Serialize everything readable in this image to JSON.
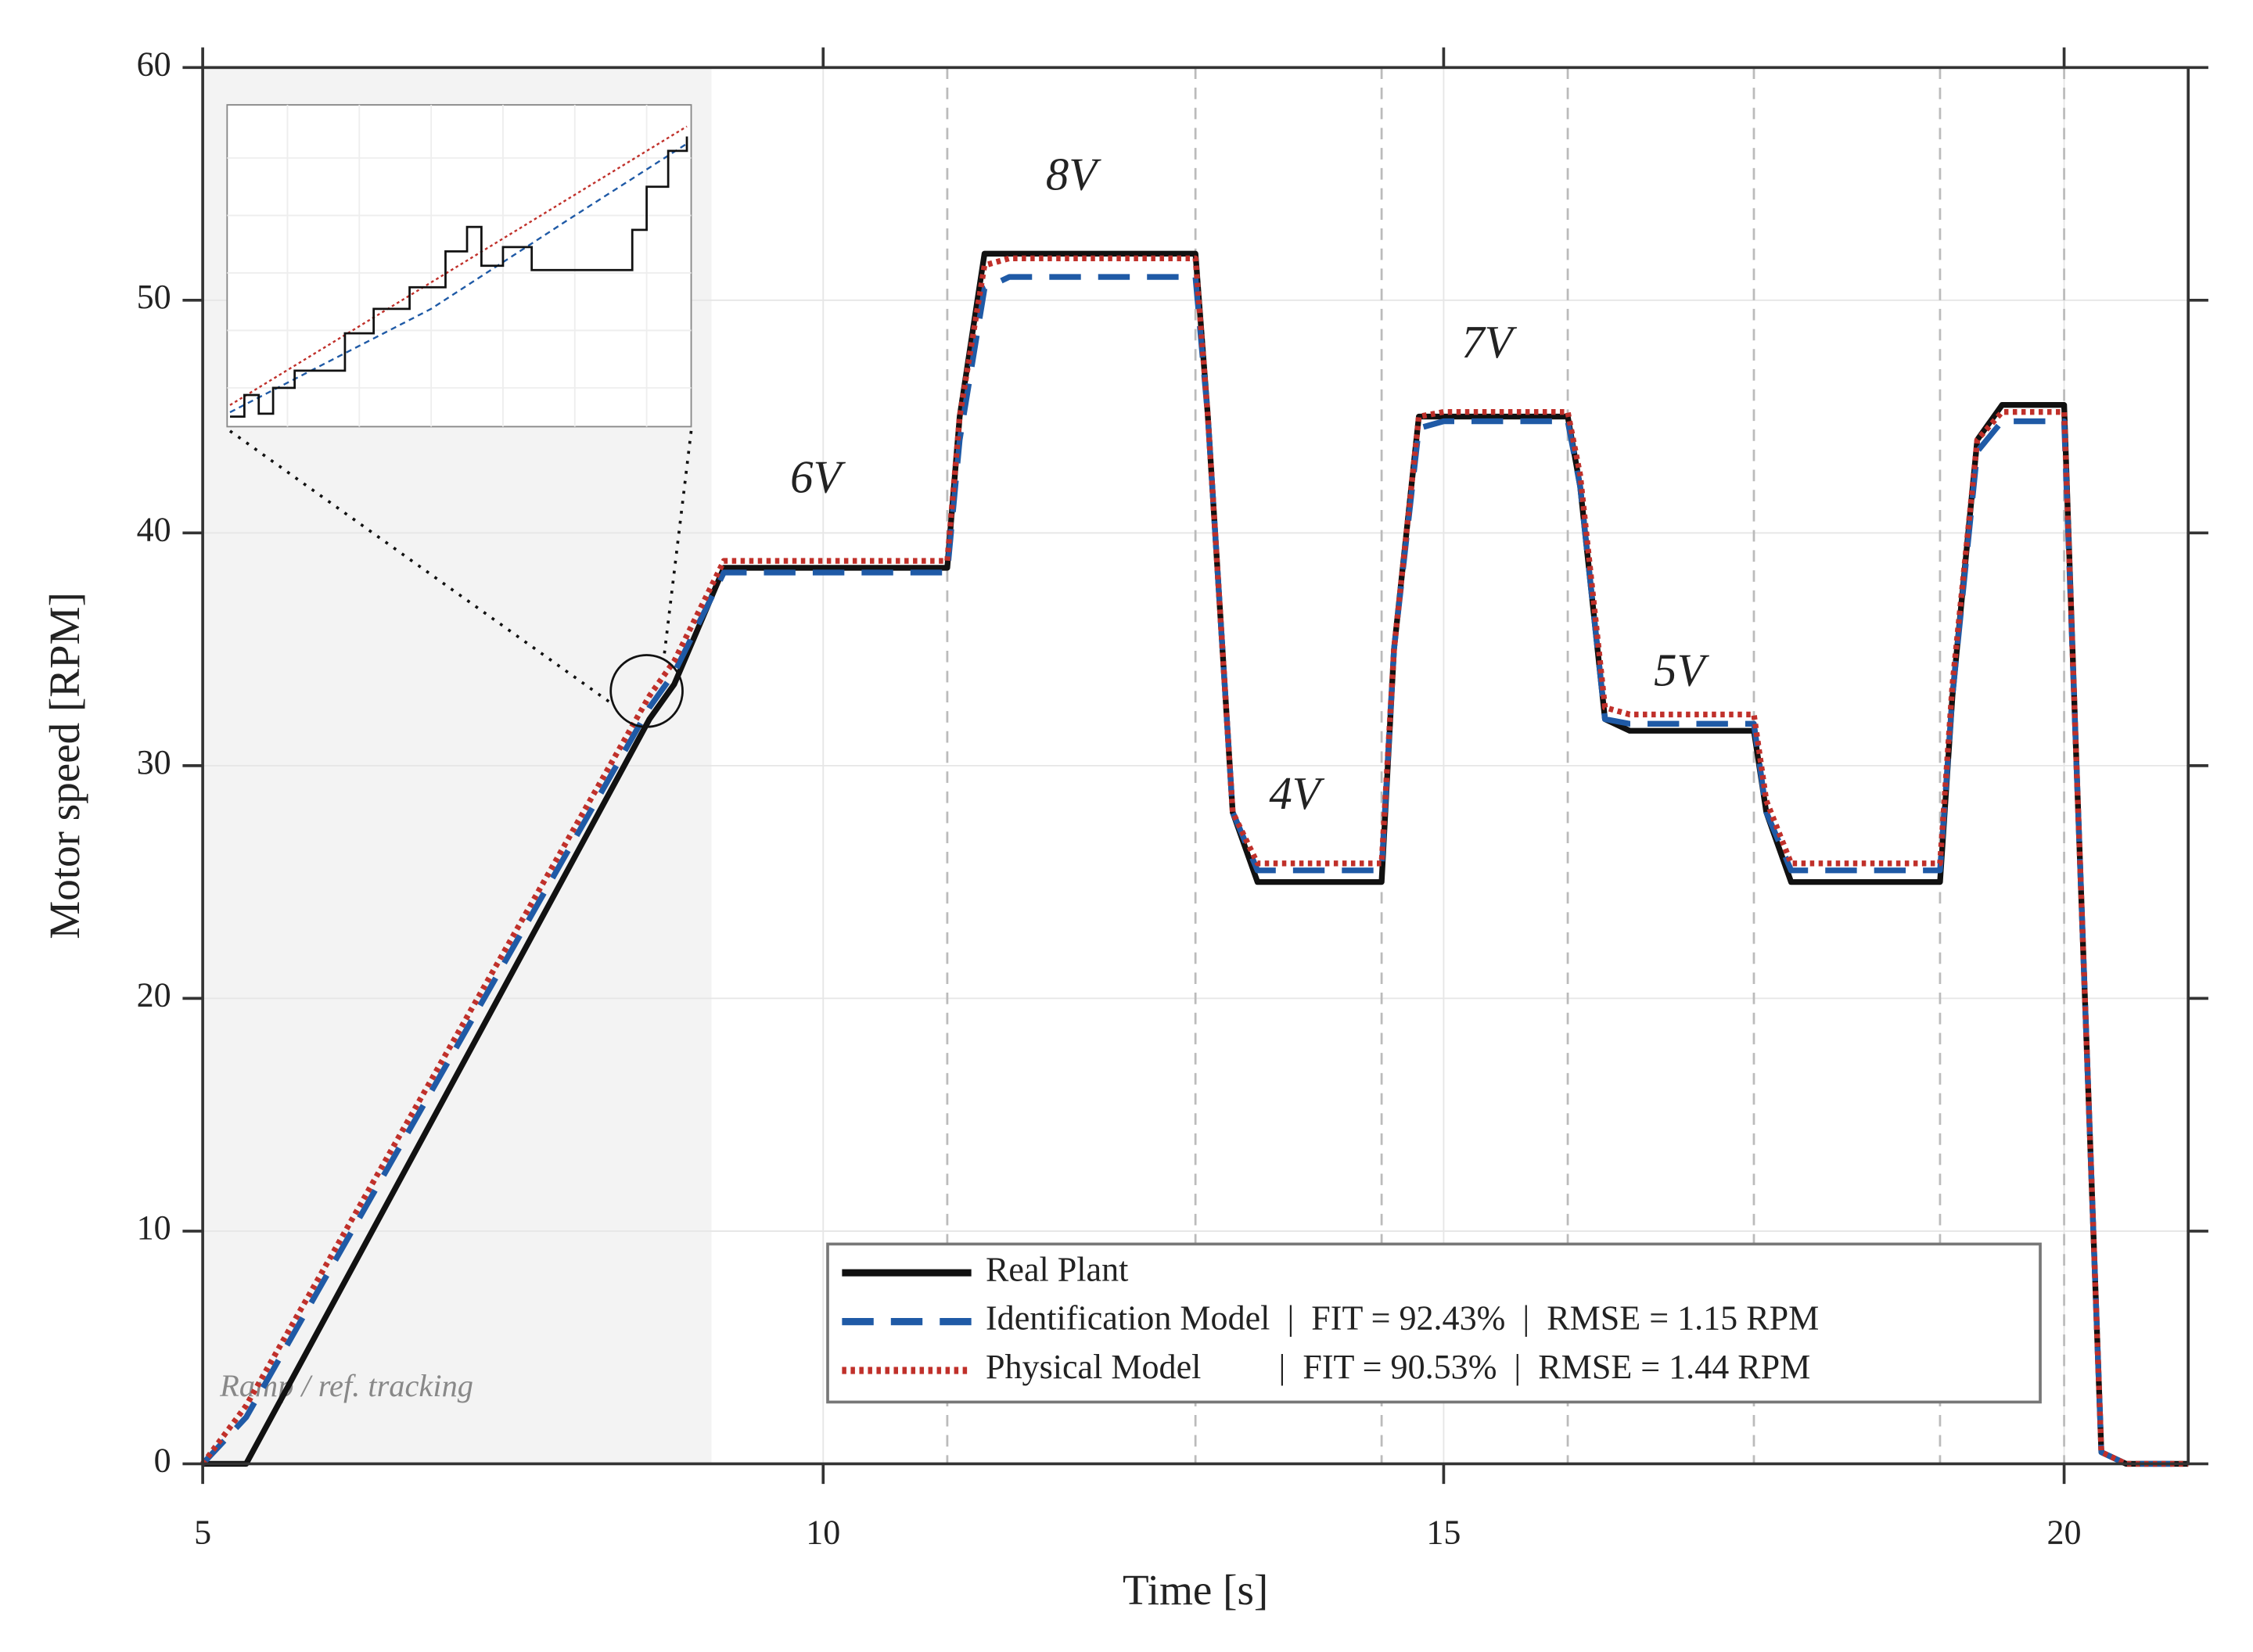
{
  "chart_data": {
    "type": "line",
    "xlabel": "Time  [s]",
    "ylabel": "Motor speed  [RPM]",
    "x": [
      5,
      5.35,
      8.6,
      8.8,
      9.2,
      11.0,
      11.1,
      11.3,
      11.5,
      13.0,
      13.1,
      13.3,
      13.5,
      14.5,
      14.6,
      14.8,
      15.0,
      16.0,
      16.1,
      16.3,
      16.5,
      17.5,
      17.6,
      17.8,
      19.0,
      19.1,
      19.3,
      19.5,
      20.0,
      20.1,
      20.3,
      20.5,
      21.0
    ],
    "series": [
      {
        "name": "Real Plant",
        "color": "#111111",
        "dash": "solid",
        "values": [
          0,
          0,
          32,
          33.5,
          38.5,
          38.5,
          45,
          52,
          52,
          52,
          45,
          28,
          25,
          25,
          35,
          45,
          45,
          45,
          42,
          32,
          31.5,
          31.5,
          28,
          25,
          25,
          33,
          44,
          45.5,
          45.5,
          30,
          0.5,
          0,
          0
        ]
      },
      {
        "name": "Identification Model  |  FIT = 92.43%  |  RMSE = 1.15 RPM",
        "color": "#1f5aa6",
        "dash": "dashed",
        "values": [
          0,
          2,
          32.5,
          34,
          38.3,
          38.3,
          44,
          50.5,
          51,
          51,
          45,
          28,
          25.5,
          25.5,
          35,
          44.5,
          44.8,
          44.8,
          42,
          32,
          31.8,
          31.8,
          28,
          25.5,
          25.5,
          33,
          43.5,
          44.8,
          44.8,
          30,
          0.5,
          0,
          0
        ]
      },
      {
        "name": "Physical Model         |  FIT = 90.53%  |  RMSE = 1.44 RPM",
        "color": "#c0302a",
        "dash": "dotted",
        "values": [
          0,
          2.5,
          33,
          34.5,
          38.8,
          38.8,
          45,
          51.5,
          51.8,
          51.8,
          45,
          28,
          25.8,
          25.8,
          35,
          45,
          45.2,
          45.2,
          42.5,
          32.5,
          32.2,
          32.2,
          28.5,
          25.8,
          25.8,
          33.5,
          44,
          45.2,
          45.2,
          30,
          0.5,
          0,
          0
        ]
      }
    ],
    "xlim": [
      5,
      21
    ],
    "ylim": [
      0,
      60
    ],
    "xticks": [
      5,
      10,
      15,
      20
    ],
    "yticks": [
      0,
      10,
      20,
      30,
      40,
      50,
      60
    ],
    "grid": true,
    "vlines": [
      11,
      13,
      14.5,
      16,
      17.5,
      19,
      20
    ],
    "shade": {
      "range": [
        5,
        9.1
      ],
      "label": "Ramp / ref. tracking"
    },
    "annotations": [
      {
        "text": "6V",
        "x": 9.94,
        "y": 42.2
      },
      {
        "text": "8V",
        "x": 12.0,
        "y": 55.2
      },
      {
        "text": "4V",
        "x": 13.8,
        "y": 28.6
      },
      {
        "text": "7V",
        "x": 15.35,
        "y": 48
      },
      {
        "text": "5V",
        "x": 16.9,
        "y": 33.9
      }
    ],
    "legend": "lower right"
  }
}
